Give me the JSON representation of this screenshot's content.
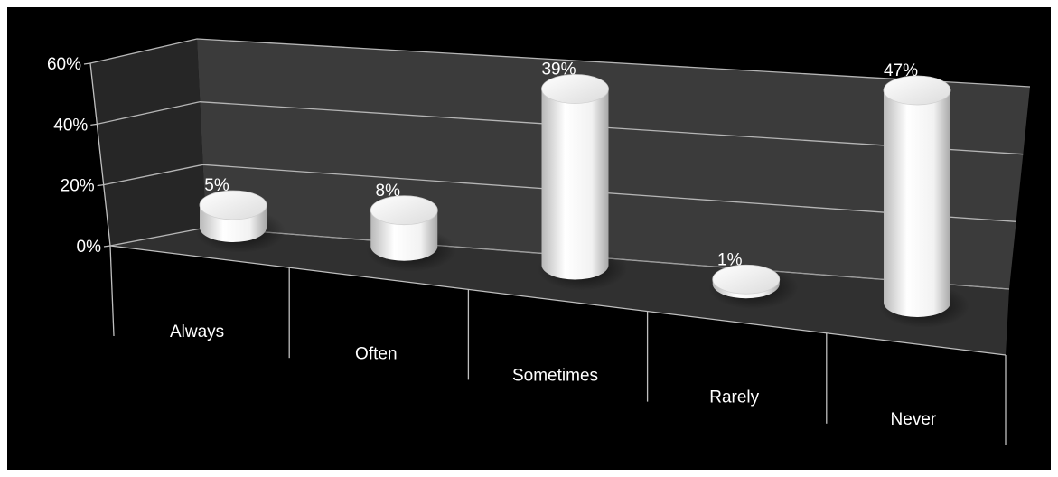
{
  "chart_data": {
    "type": "bar",
    "style": "3d-cylinder",
    "categories": [
      "Always",
      "Often",
      "Sometimes",
      "Rarely",
      "Never"
    ],
    "values": [
      5,
      8,
      39,
      1,
      47
    ],
    "data_labels": [
      "5%",
      "8%",
      "39%",
      "1%",
      "47%"
    ],
    "ylim": [
      0,
      60
    ],
    "yticks": [
      "0%",
      "20%",
      "40%",
      "60%"
    ],
    "grid": true,
    "legend": "none",
    "colors": {
      "background": "#000000",
      "back_wall": "#3a3a3a",
      "side_wall": "#262626",
      "floor": "#2f2f2f",
      "gridline": "#b5b5b5",
      "bar": "#ffffff",
      "text": "#ffffff"
    }
  }
}
